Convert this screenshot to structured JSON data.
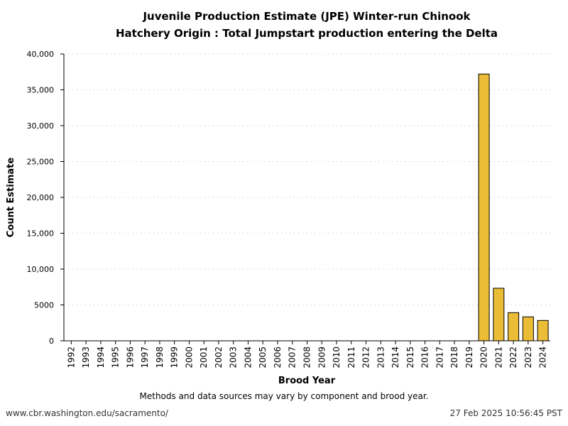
{
  "chart_data": {
    "type": "bar",
    "title": "Juvenile Production Estimate (JPE) Winter-run Chinook",
    "subtitle": "Hatchery Origin : Total Jumpstart production entering the Delta",
    "xlabel": "Brood Year",
    "ylabel": "Count Estimate",
    "ylim": [
      0,
      40000
    ],
    "yticks": [
      0,
      5000,
      10000,
      15000,
      20000,
      25000,
      30000,
      35000,
      40000
    ],
    "ytick_labels": [
      "0",
      "5000",
      "10,000",
      "15,000",
      "20,000",
      "25,000",
      "30,000",
      "35,000",
      "40,000"
    ],
    "grid": "horizontal dotted",
    "categories": [
      "1992",
      "1993",
      "1994",
      "1995",
      "1996",
      "1997",
      "1998",
      "1999",
      "2000",
      "2001",
      "2002",
      "2003",
      "2004",
      "2005",
      "2006",
      "2007",
      "2008",
      "2009",
      "2010",
      "2011",
      "2012",
      "2013",
      "2014",
      "2015",
      "2016",
      "2017",
      "2018",
      "2019",
      "2020",
      "2021",
      "2022",
      "2023",
      "2024"
    ],
    "values": [
      null,
      null,
      null,
      null,
      null,
      null,
      null,
      null,
      null,
      null,
      null,
      null,
      null,
      null,
      null,
      null,
      null,
      null,
      null,
      null,
      null,
      null,
      null,
      null,
      null,
      null,
      null,
      null,
      37200,
      7330,
      3930,
      3340,
      2840
    ],
    "bar_color": "#EBBC35",
    "note": "Methods and data sources may vary by component and brood year."
  },
  "footer": {
    "url": "www.cbr.washington.edu/sacramento/",
    "timestamp": "27 Feb 2025 10:56:45 PST"
  }
}
